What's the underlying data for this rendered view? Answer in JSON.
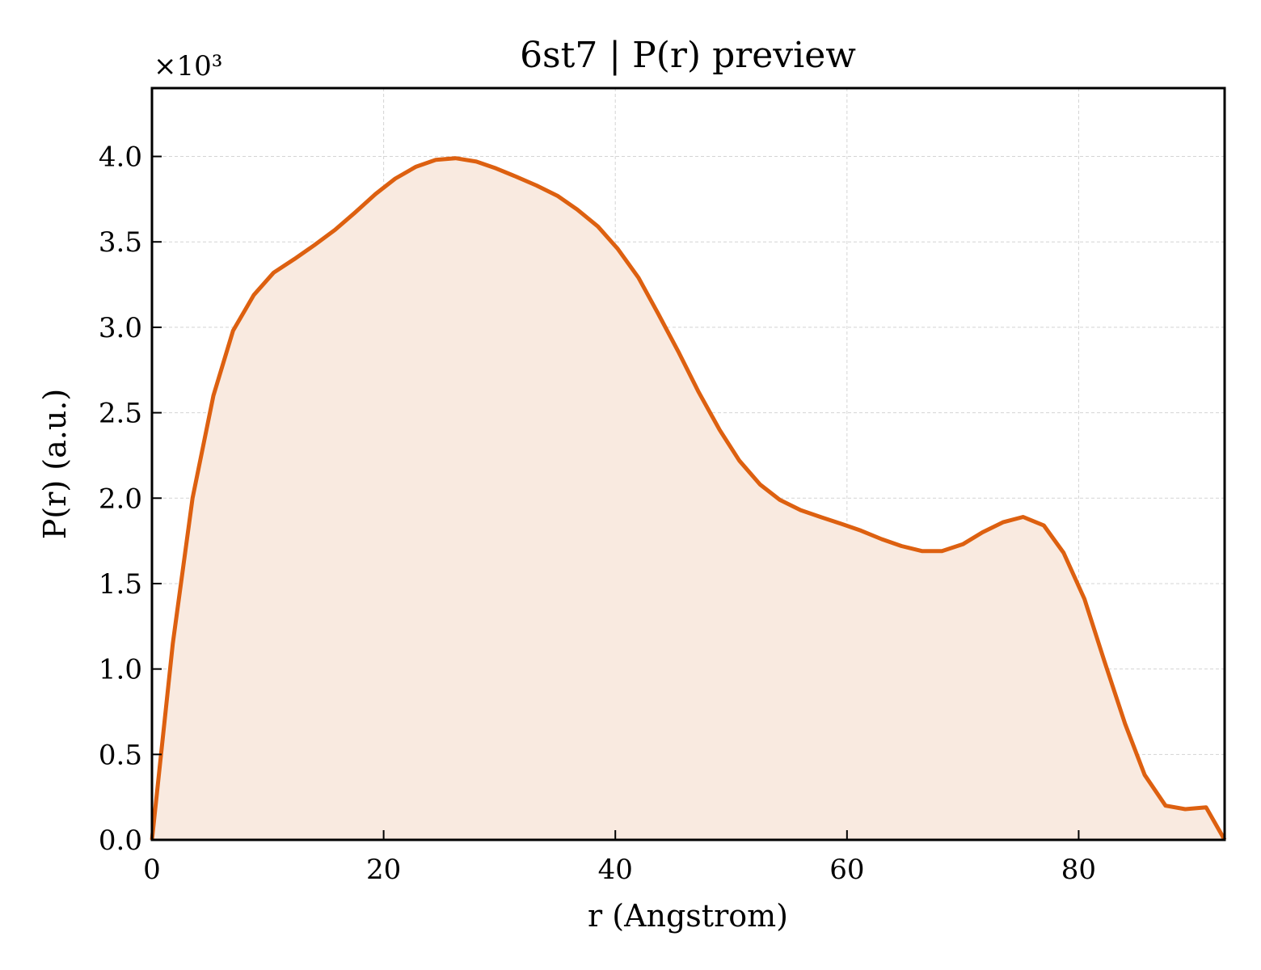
{
  "chart_data": {
    "type": "area",
    "title": "6st7 | P(r) preview",
    "xlabel": "r (Angstrom)",
    "ylabel": "P(r) (a.u.)",
    "y_scale_label": "×10³",
    "xlim": [
      0,
      92.6
    ],
    "ylim": [
      0,
      4.4
    ],
    "x_ticks": [
      0,
      20,
      40,
      60,
      80
    ],
    "x_tick_labels": [
      "0",
      "20",
      "40",
      "60",
      "80"
    ],
    "y_ticks": [
      0,
      0.5,
      1,
      1.5,
      2,
      2.5,
      3,
      3.5,
      4
    ],
    "y_tick_labels": [
      "0.0",
      "0.5",
      "1.0",
      "1.5",
      "2.0",
      "2.5",
      "3.0",
      "3.5",
      "4.0"
    ],
    "grid": true,
    "colors": {
      "line": "#dd6010",
      "fill": "#f9eae0"
    },
    "series": [
      {
        "x": [
          0,
          1.8,
          3.5,
          5.3,
          7.0,
          8.8,
          10.5,
          12.3,
          14.0,
          15.8,
          17.5,
          19.3,
          21.0,
          22.8,
          24.5,
          26.2,
          28.0,
          29.7,
          31.5,
          33.2,
          35.0,
          36.7,
          38.5,
          40.2,
          42.0,
          43.7,
          45.5,
          47.2,
          49.0,
          50.7,
          52.5,
          54.2,
          56.0,
          57.7,
          59.5,
          61.2,
          63.0,
          64.7,
          66.5,
          68.2,
          70.0,
          71.7,
          73.5,
          75.2,
          77.0,
          78.7,
          80.5,
          82.2,
          84.0,
          85.7,
          87.5,
          89.2,
          91.0,
          92.6
        ],
        "y": [
          0,
          1.15,
          2.0,
          2.6,
          2.98,
          3.19,
          3.32,
          3.4,
          3.48,
          3.57,
          3.67,
          3.78,
          3.87,
          3.94,
          3.98,
          3.99,
          3.97,
          3.93,
          3.88,
          3.83,
          3.77,
          3.69,
          3.59,
          3.46,
          3.29,
          3.08,
          2.85,
          2.62,
          2.4,
          2.22,
          2.08,
          1.99,
          1.93,
          1.89,
          1.85,
          1.81,
          1.76,
          1.72,
          1.69,
          1.69,
          1.73,
          1.8,
          1.86,
          1.89,
          1.84,
          1.68,
          1.41,
          1.05,
          0.68,
          0.38,
          0.2,
          0.18,
          0.19,
          0
        ]
      }
    ]
  }
}
